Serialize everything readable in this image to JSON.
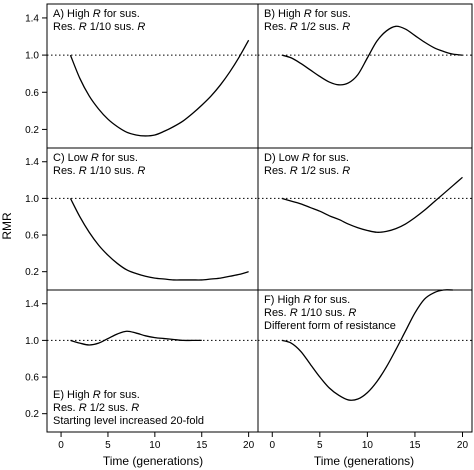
{
  "chart_data": {
    "type": "line",
    "layout": "grid 3 rows x 2 columns, shared axes",
    "xlabel": "Time (generations)",
    "ylabel": "RMR",
    "xlim": [
      -1.5,
      21
    ],
    "ylim": [
      0,
      1.55
    ],
    "xticks": [
      0,
      5,
      10,
      15,
      20
    ],
    "yticks": [
      0.2,
      0.6,
      1.0,
      1.4
    ],
    "reference_line": {
      "y": 1.0,
      "style": "dotted"
    },
    "panels": [
      {
        "title_lines": [
          [
            {
              "t": "A) High "
            },
            {
              "t": "R",
              "i": true
            },
            {
              "t": " for sus."
            }
          ],
          [
            {
              "t": "Res. "
            },
            {
              "t": "R",
              "i": true
            },
            {
              "t": " 1/10 sus. "
            },
            {
              "t": "R",
              "i": true
            }
          ]
        ],
        "x": [
          1,
          2,
          3,
          4,
          5,
          6,
          7,
          8,
          9,
          10,
          11,
          12,
          13,
          14,
          15,
          16,
          17,
          18,
          19,
          20
        ],
        "y": [
          1.0,
          0.75,
          0.56,
          0.42,
          0.31,
          0.23,
          0.17,
          0.14,
          0.13,
          0.14,
          0.18,
          0.23,
          0.29,
          0.37,
          0.46,
          0.56,
          0.68,
          0.82,
          0.98,
          1.16
        ]
      },
      {
        "title_lines": [
          [
            {
              "t": "B) High "
            },
            {
              "t": "R",
              "i": true
            },
            {
              "t": " for sus."
            }
          ],
          [
            {
              "t": "Res. "
            },
            {
              "t": "R",
              "i": true
            },
            {
              "t": " 1/2 sus. "
            },
            {
              "t": "R",
              "i": true
            }
          ]
        ],
        "x": [
          1,
          2,
          3,
          4,
          5,
          6,
          7,
          8,
          9,
          10,
          11,
          12,
          13,
          14,
          15,
          16,
          17,
          18,
          19,
          20
        ],
        "y": [
          1.0,
          0.97,
          0.91,
          0.84,
          0.77,
          0.71,
          0.68,
          0.7,
          0.79,
          0.97,
          1.15,
          1.26,
          1.31,
          1.28,
          1.21,
          1.14,
          1.08,
          1.04,
          1.01,
          1.0
        ]
      },
      {
        "title_lines": [
          [
            {
              "t": "C) Low "
            },
            {
              "t": "R",
              "i": true
            },
            {
              "t": " for sus."
            }
          ],
          [
            {
              "t": "Res. "
            },
            {
              "t": "R",
              "i": true
            },
            {
              "t": " 1/10 sus. "
            },
            {
              "t": "R",
              "i": true
            }
          ]
        ],
        "x": [
          1,
          2,
          3,
          4,
          5,
          6,
          7,
          8,
          9,
          10,
          11,
          12,
          13,
          14,
          15,
          16,
          17,
          18,
          19,
          20
        ],
        "y": [
          1.0,
          0.8,
          0.63,
          0.49,
          0.38,
          0.29,
          0.22,
          0.18,
          0.15,
          0.13,
          0.12,
          0.11,
          0.11,
          0.11,
          0.11,
          0.12,
          0.13,
          0.15,
          0.17,
          0.2
        ]
      },
      {
        "title_lines": [
          [
            {
              "t": "D) Low "
            },
            {
              "t": "R",
              "i": true
            },
            {
              "t": " for sus."
            }
          ],
          [
            {
              "t": "Res. "
            },
            {
              "t": "R",
              "i": true
            },
            {
              "t": " 1/2 sus. "
            },
            {
              "t": "R",
              "i": true
            }
          ]
        ],
        "x": [
          1,
          2,
          3,
          4,
          5,
          6,
          7,
          8,
          9,
          10,
          11,
          12,
          13,
          14,
          15,
          16,
          17,
          18,
          19,
          20
        ],
        "y": [
          1.0,
          0.97,
          0.94,
          0.9,
          0.86,
          0.81,
          0.77,
          0.72,
          0.68,
          0.65,
          0.63,
          0.64,
          0.67,
          0.72,
          0.79,
          0.87,
          0.96,
          1.05,
          1.14,
          1.23
        ]
      },
      {
        "title_lines": [
          [
            {
              "t": "E) High "
            },
            {
              "t": "R",
              "i": true
            },
            {
              "t": " for sus."
            }
          ],
          [
            {
              "t": "Res. "
            },
            {
              "t": "R",
              "i": true
            },
            {
              "t": " 1/2 sus. "
            },
            {
              "t": "R",
              "i": true
            }
          ],
          [
            {
              "t": "Starting level increased 20-fold"
            }
          ]
        ],
        "title_position": "bottom-left",
        "x": [
          1,
          2,
          3,
          4,
          5,
          6,
          7,
          8,
          9,
          10,
          11,
          12,
          13,
          14,
          15
        ],
        "y": [
          1.0,
          0.97,
          0.95,
          0.97,
          1.02,
          1.07,
          1.1,
          1.08,
          1.05,
          1.03,
          1.02,
          1.01,
          1.0,
          1.0,
          1.0
        ]
      },
      {
        "title_lines": [
          [
            {
              "t": "F) High "
            },
            {
              "t": "R",
              "i": true
            },
            {
              "t": " for sus."
            }
          ],
          [
            {
              "t": "Res. "
            },
            {
              "t": "R",
              "i": true
            },
            {
              "t": " 1/10 sus. "
            },
            {
              "t": "R",
              "i": true
            }
          ],
          [
            {
              "t": "Different form of resistance"
            }
          ]
        ],
        "x": [
          1,
          2,
          3,
          4,
          5,
          6,
          7,
          8,
          9,
          10,
          11,
          12,
          13,
          14,
          15,
          16,
          17,
          18,
          19
        ],
        "y": [
          1.0,
          0.97,
          0.88,
          0.74,
          0.6,
          0.48,
          0.4,
          0.35,
          0.36,
          0.43,
          0.55,
          0.71,
          0.9,
          1.1,
          1.3,
          1.45,
          1.52,
          1.6,
          1.6
        ]
      }
    ]
  }
}
